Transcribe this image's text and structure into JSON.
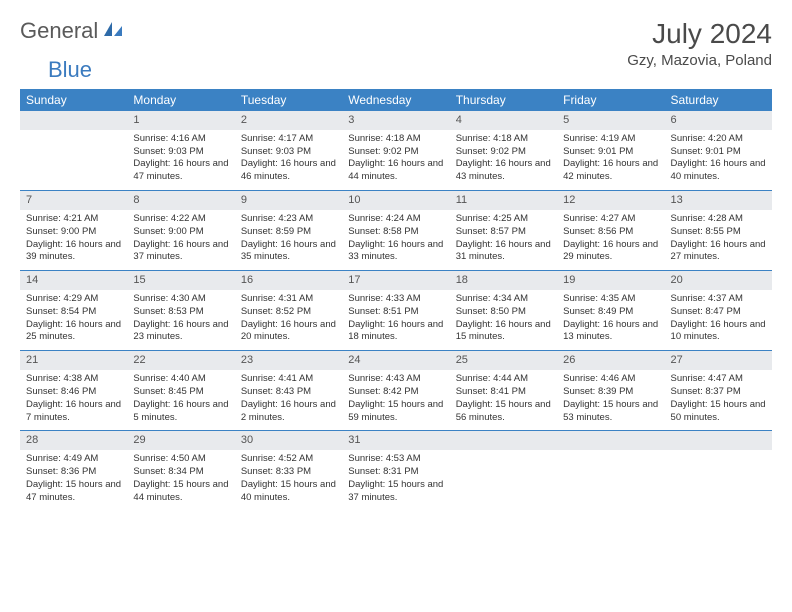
{
  "brand": {
    "text1": "General",
    "text2": "Blue",
    "color_gray": "#5a5a5a",
    "color_blue": "#3b7bbf"
  },
  "title": "July 2024",
  "location": "Gzy, Mazovia, Poland",
  "colors": {
    "header_bg": "#3b82c4",
    "header_text": "#ffffff",
    "daynum_bg": "#e8eaed",
    "border": "#3b82c4",
    "body_text": "#333333",
    "title_text": "#4a4a4a"
  },
  "weekdays": [
    "Sunday",
    "Monday",
    "Tuesday",
    "Wednesday",
    "Thursday",
    "Friday",
    "Saturday"
  ],
  "start_offset": 1,
  "days": [
    {
      "n": 1,
      "sunrise": "4:16 AM",
      "sunset": "9:03 PM",
      "daylight": "16 hours and 47 minutes."
    },
    {
      "n": 2,
      "sunrise": "4:17 AM",
      "sunset": "9:03 PM",
      "daylight": "16 hours and 46 minutes."
    },
    {
      "n": 3,
      "sunrise": "4:18 AM",
      "sunset": "9:02 PM",
      "daylight": "16 hours and 44 minutes."
    },
    {
      "n": 4,
      "sunrise": "4:18 AM",
      "sunset": "9:02 PM",
      "daylight": "16 hours and 43 minutes."
    },
    {
      "n": 5,
      "sunrise": "4:19 AM",
      "sunset": "9:01 PM",
      "daylight": "16 hours and 42 minutes."
    },
    {
      "n": 6,
      "sunrise": "4:20 AM",
      "sunset": "9:01 PM",
      "daylight": "16 hours and 40 minutes."
    },
    {
      "n": 7,
      "sunrise": "4:21 AM",
      "sunset": "9:00 PM",
      "daylight": "16 hours and 39 minutes."
    },
    {
      "n": 8,
      "sunrise": "4:22 AM",
      "sunset": "9:00 PM",
      "daylight": "16 hours and 37 minutes."
    },
    {
      "n": 9,
      "sunrise": "4:23 AM",
      "sunset": "8:59 PM",
      "daylight": "16 hours and 35 minutes."
    },
    {
      "n": 10,
      "sunrise": "4:24 AM",
      "sunset": "8:58 PM",
      "daylight": "16 hours and 33 minutes."
    },
    {
      "n": 11,
      "sunrise": "4:25 AM",
      "sunset": "8:57 PM",
      "daylight": "16 hours and 31 minutes."
    },
    {
      "n": 12,
      "sunrise": "4:27 AM",
      "sunset": "8:56 PM",
      "daylight": "16 hours and 29 minutes."
    },
    {
      "n": 13,
      "sunrise": "4:28 AM",
      "sunset": "8:55 PM",
      "daylight": "16 hours and 27 minutes."
    },
    {
      "n": 14,
      "sunrise": "4:29 AM",
      "sunset": "8:54 PM",
      "daylight": "16 hours and 25 minutes."
    },
    {
      "n": 15,
      "sunrise": "4:30 AM",
      "sunset": "8:53 PM",
      "daylight": "16 hours and 23 minutes."
    },
    {
      "n": 16,
      "sunrise": "4:31 AM",
      "sunset": "8:52 PM",
      "daylight": "16 hours and 20 minutes."
    },
    {
      "n": 17,
      "sunrise": "4:33 AM",
      "sunset": "8:51 PM",
      "daylight": "16 hours and 18 minutes."
    },
    {
      "n": 18,
      "sunrise": "4:34 AM",
      "sunset": "8:50 PM",
      "daylight": "16 hours and 15 minutes."
    },
    {
      "n": 19,
      "sunrise": "4:35 AM",
      "sunset": "8:49 PM",
      "daylight": "16 hours and 13 minutes."
    },
    {
      "n": 20,
      "sunrise": "4:37 AM",
      "sunset": "8:47 PM",
      "daylight": "16 hours and 10 minutes."
    },
    {
      "n": 21,
      "sunrise": "4:38 AM",
      "sunset": "8:46 PM",
      "daylight": "16 hours and 7 minutes."
    },
    {
      "n": 22,
      "sunrise": "4:40 AM",
      "sunset": "8:45 PM",
      "daylight": "16 hours and 5 minutes."
    },
    {
      "n": 23,
      "sunrise": "4:41 AM",
      "sunset": "8:43 PM",
      "daylight": "16 hours and 2 minutes."
    },
    {
      "n": 24,
      "sunrise": "4:43 AM",
      "sunset": "8:42 PM",
      "daylight": "15 hours and 59 minutes."
    },
    {
      "n": 25,
      "sunrise": "4:44 AM",
      "sunset": "8:41 PM",
      "daylight": "15 hours and 56 minutes."
    },
    {
      "n": 26,
      "sunrise": "4:46 AM",
      "sunset": "8:39 PM",
      "daylight": "15 hours and 53 minutes."
    },
    {
      "n": 27,
      "sunrise": "4:47 AM",
      "sunset": "8:37 PM",
      "daylight": "15 hours and 50 minutes."
    },
    {
      "n": 28,
      "sunrise": "4:49 AM",
      "sunset": "8:36 PM",
      "daylight": "15 hours and 47 minutes."
    },
    {
      "n": 29,
      "sunrise": "4:50 AM",
      "sunset": "8:34 PM",
      "daylight": "15 hours and 44 minutes."
    },
    {
      "n": 30,
      "sunrise": "4:52 AM",
      "sunset": "8:33 PM",
      "daylight": "15 hours and 40 minutes."
    },
    {
      "n": 31,
      "sunrise": "4:53 AM",
      "sunset": "8:31 PM",
      "daylight": "15 hours and 37 minutes."
    }
  ],
  "labels": {
    "sunrise": "Sunrise:",
    "sunset": "Sunset:",
    "daylight": "Daylight:"
  }
}
